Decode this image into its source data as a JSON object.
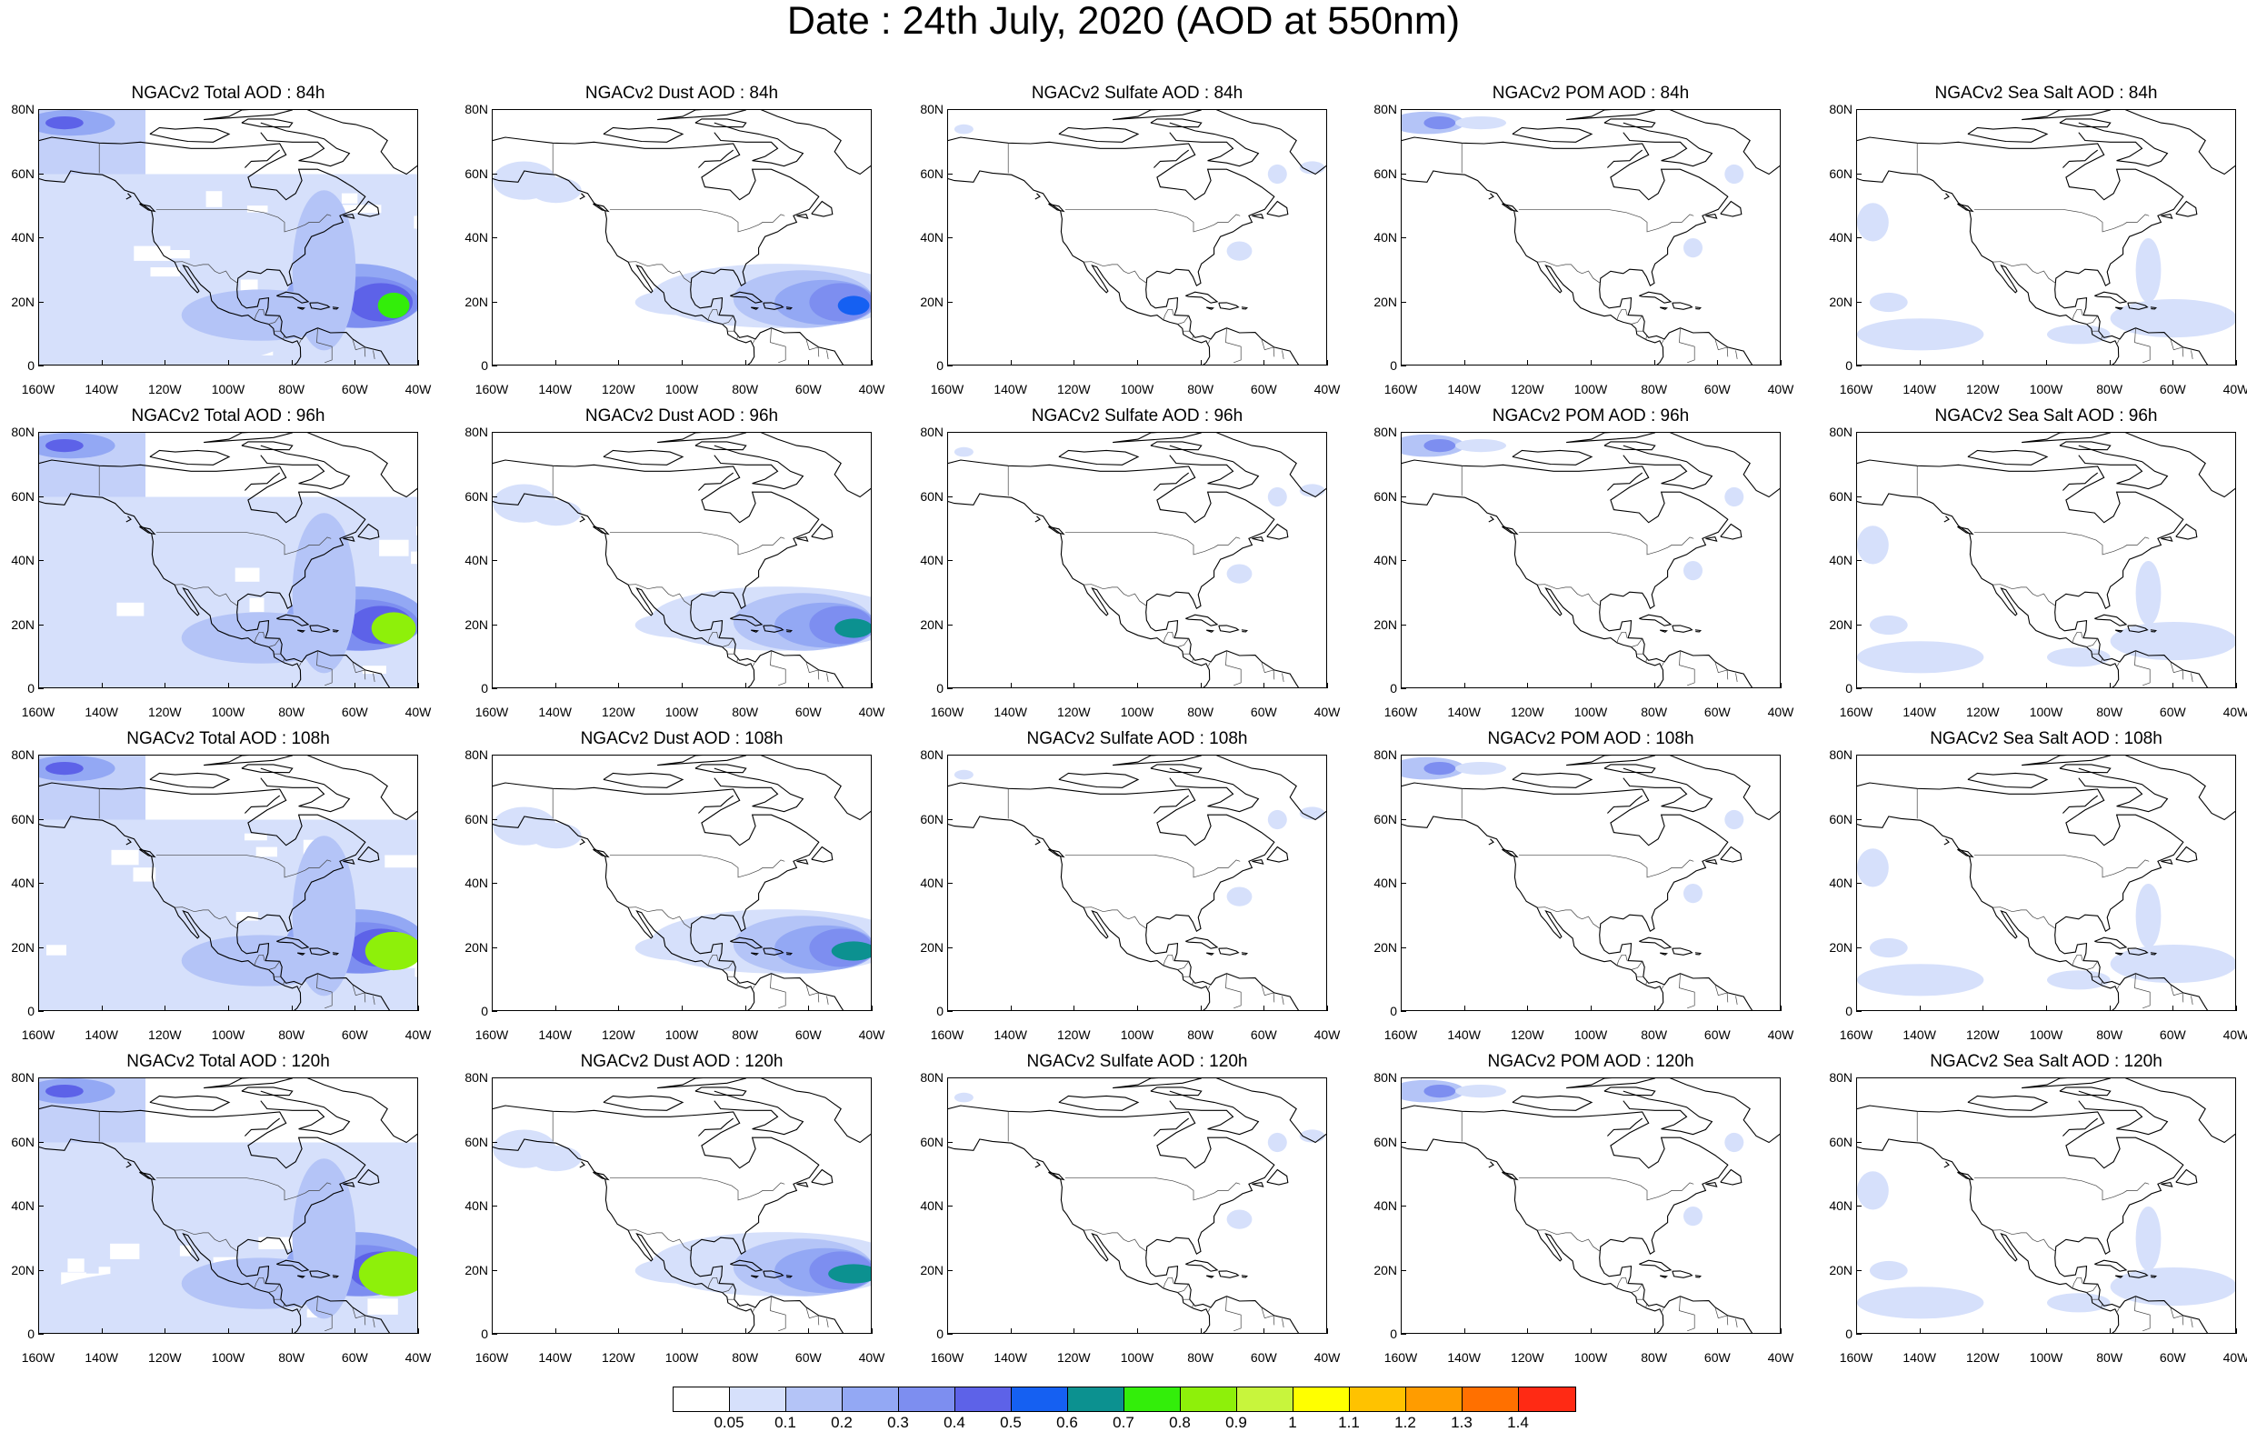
{
  "title": "Date : 24th July, 2020 (AOD at 550nm)",
  "lat_labels": [
    "80N",
    "60N",
    "40N",
    "20N",
    "0"
  ],
  "lon_labels": [
    "160W",
    "140W",
    "120W",
    "100W",
    "80W",
    "60W",
    "40W"
  ],
  "panels": [
    [
      {
        "title": "NGACv2 Total AOD : 84h",
        "kind": "total",
        "hour": 84
      },
      {
        "title": "NGACv2 Dust AOD : 84h",
        "kind": "dust",
        "hour": 84
      },
      {
        "title": "NGACv2 Sulfate AOD : 84h",
        "kind": "sulfate",
        "hour": 84
      },
      {
        "title": "NGACv2 POM AOD : 84h",
        "kind": "pom",
        "hour": 84
      },
      {
        "title": "NGACv2 Sea Salt AOD : 84h",
        "kind": "seasalt",
        "hour": 84
      }
    ],
    [
      {
        "title": "NGACv2 Total AOD : 96h",
        "kind": "total",
        "hour": 96
      },
      {
        "title": "NGACv2 Dust AOD : 96h",
        "kind": "dust",
        "hour": 96
      },
      {
        "title": "NGACv2 Sulfate AOD : 96h",
        "kind": "sulfate",
        "hour": 96
      },
      {
        "title": "NGACv2 POM AOD : 96h",
        "kind": "pom",
        "hour": 96
      },
      {
        "title": "NGACv2 Sea Salt AOD : 96h",
        "kind": "seasalt",
        "hour": 96
      }
    ],
    [
      {
        "title": "NGACv2 Total AOD : 108h",
        "kind": "total",
        "hour": 108
      },
      {
        "title": "NGACv2 Dust AOD : 108h",
        "kind": "dust",
        "hour": 108
      },
      {
        "title": "NGACv2 Sulfate AOD : 108h",
        "kind": "sulfate",
        "hour": 108
      },
      {
        "title": "NGACv2 POM AOD : 108h",
        "kind": "pom",
        "hour": 108
      },
      {
        "title": "NGACv2 Sea Salt AOD : 108h",
        "kind": "seasalt",
        "hour": 108
      }
    ],
    [
      {
        "title": "NGACv2 Total AOD : 120h",
        "kind": "total",
        "hour": 120
      },
      {
        "title": "NGACv2 Dust AOD : 120h",
        "kind": "dust",
        "hour": 120
      },
      {
        "title": "NGACv2 Sulfate AOD : 120h",
        "kind": "sulfate",
        "hour": 120
      },
      {
        "title": "NGACv2 POM AOD : 120h",
        "kind": "pom",
        "hour": 120
      },
      {
        "title": "NGACv2 Sea Salt  AOD : 120h",
        "kind": "seasalt",
        "hour": 120
      }
    ]
  ],
  "colorbar": {
    "colors": [
      "#ffffff",
      "#d6e0fb",
      "#b4c4f7",
      "#93a8f4",
      "#7d8ef0",
      "#5d62e8",
      "#1560f2",
      "#0c9190",
      "#33ee0a",
      "#8ef00a",
      "#c8f53c",
      "#ffff00",
      "#ffc200",
      "#ff9c00",
      "#ff7000",
      "#ff2a14"
    ],
    "labels": [
      "0.05",
      "0.1",
      "0.2",
      "0.3",
      "0.4",
      "0.5",
      "0.6",
      "0.7",
      "0.8",
      "0.9",
      "1",
      "1.1",
      "1.2",
      "1.3",
      "1.4"
    ]
  }
}
